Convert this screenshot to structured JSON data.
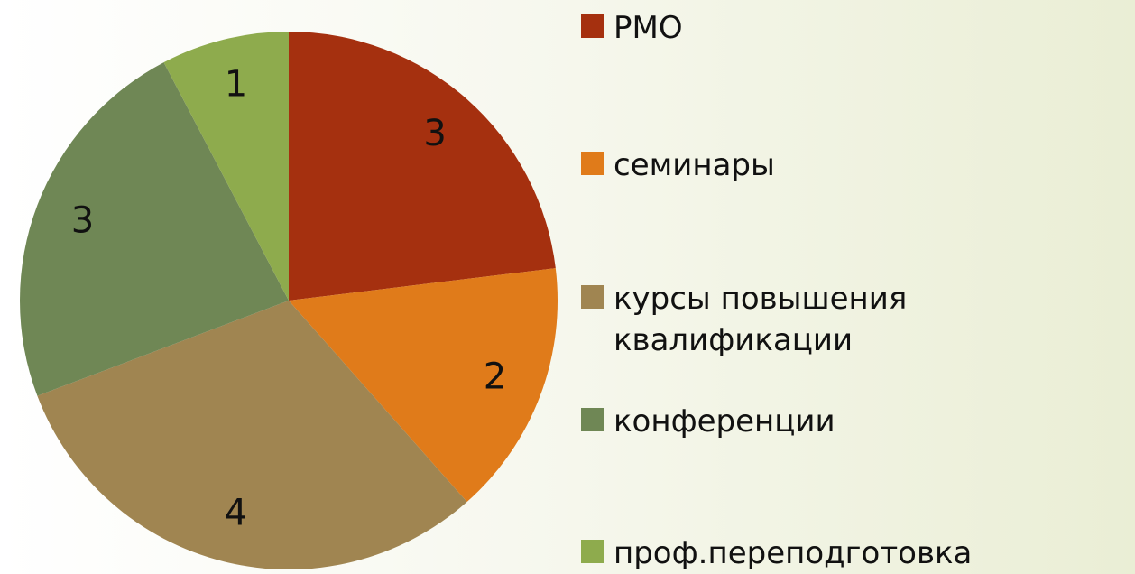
{
  "chart_data": {
    "type": "pie",
    "categories": [
      "РМО",
      "семинары",
      "курсы повышения квалификации",
      "конференции",
      "проф.переподготовка"
    ],
    "values": [
      3,
      2,
      4,
      3,
      1
    ],
    "colors": [
      "#a5300f",
      "#e07b1a",
      "#a08551",
      "#6f8755",
      "#8eab4d"
    ],
    "legend": "right"
  }
}
